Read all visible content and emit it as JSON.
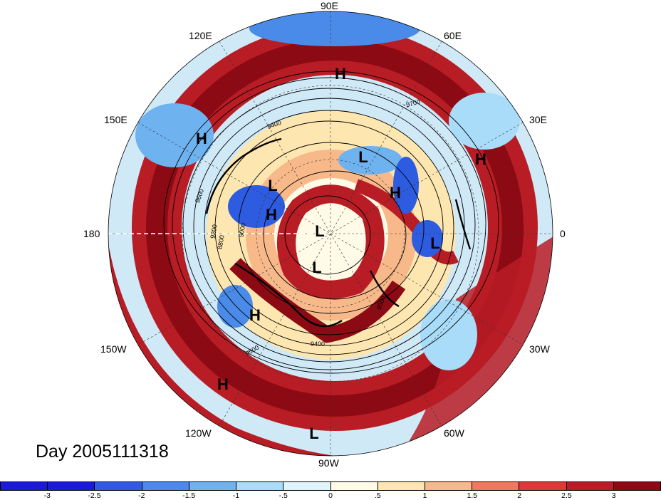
{
  "title": "Day 2005111318",
  "longitude_labels": {
    "north": "90E",
    "northwest": "120E",
    "northeast": "60E",
    "west_upper": "150E",
    "east_upper": "30E",
    "west": "180",
    "east": "0",
    "west_lower": "150W",
    "east_lower": "30W",
    "southwest": "120W",
    "southeast": "60W",
    "south": "90W"
  },
  "pressure_centers": [
    "H",
    "H",
    "L",
    "H",
    "L",
    "H",
    "L",
    "L",
    "H",
    "L",
    "H",
    "H",
    "L"
  ],
  "contour_labels": [
    "9400",
    "9500",
    "9600",
    "9700",
    "9200",
    "9000",
    "8800"
  ],
  "colorbar": {
    "ticks": [
      "-3",
      "-2.5",
      "-2",
      "-1.5",
      "-1",
      "-.5",
      "0",
      ".5",
      "1",
      "1.5",
      "2",
      "2.5",
      "3"
    ],
    "colors": [
      "#1a1ad8",
      "#2e5ce0",
      "#4a8ae8",
      "#6fb2f0",
      "#a8dcf8",
      "#dff4fb",
      "#fffbe6",
      "#fde6b0",
      "#f8b98a",
      "#ee7a5c",
      "#dc3a34",
      "#b81c24",
      "#8c0a14"
    ]
  }
}
